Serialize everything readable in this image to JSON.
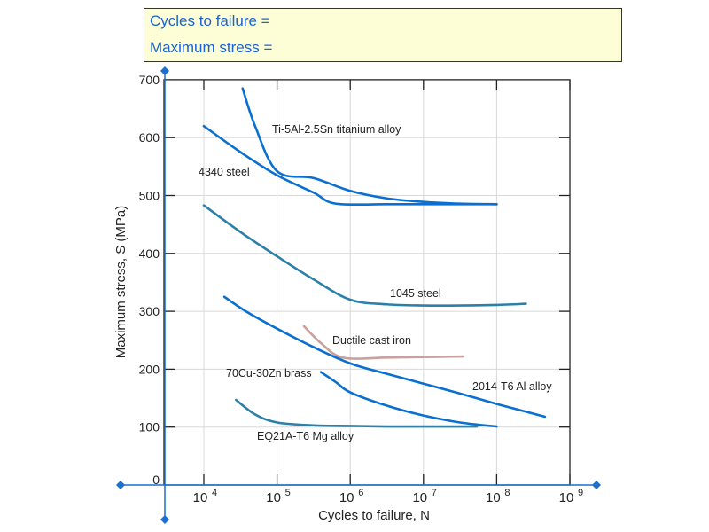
{
  "info_box": {
    "cycles_label": "Cycles to failure =",
    "stress_label": "Maximum stress ="
  },
  "chart_data": {
    "type": "line",
    "xlabel": "Cycles to failure, N",
    "ylabel": "Maximum stress, S (MPa)",
    "x_scale": "log",
    "xlim": [
      3.45,
      9
    ],
    "ylim": [
      0,
      700
    ],
    "x_ticks": [
      "10^4",
      "10^5",
      "10^6",
      "10^7",
      "10^8",
      "10^9"
    ],
    "y_ticks": [
      "0",
      "100",
      "200",
      "300",
      "400",
      "500",
      "600",
      "700"
    ],
    "grid": true,
    "series": [
      {
        "name": "Ti-5Al-2.5Sn titanium alloy",
        "color": "#0a6fd0",
        "x": [
          4.53,
          4.7,
          5.0,
          5.5,
          6.0,
          6.5,
          7.0,
          7.5,
          8.0
        ],
        "y": [
          685,
          620,
          542,
          530,
          508,
          495,
          489,
          486,
          485
        ]
      },
      {
        "name": "4340 steel",
        "color": "#0a6fd0",
        "x": [
          4.0,
          4.5,
          5.0,
          5.5,
          5.8,
          6.5,
          7.0,
          8.0
        ],
        "y": [
          620,
          575,
          535,
          505,
          486,
          485,
          485,
          485
        ]
      },
      {
        "name": "1045 steel",
        "color": "#2a80a8",
        "x": [
          4.0,
          4.5,
          5.0,
          5.5,
          6.0,
          6.5,
          7.0,
          7.5,
          8.0,
          8.4
        ],
        "y": [
          483,
          437,
          395,
          355,
          320,
          312,
          310,
          310,
          311,
          313
        ]
      },
      {
        "name": "Ductile cast iron",
        "color": "#c9a09c",
        "x": [
          5.37,
          5.6,
          5.9,
          6.5,
          7.0,
          7.54
        ],
        "y": [
          274,
          245,
          220,
          220,
          221,
          222
        ]
      },
      {
        "name": "2014-T6 Al alloy",
        "color": "#0a6fd0",
        "x": [
          4.28,
          4.6,
          5.0,
          5.5,
          6.0,
          6.5,
          7.0,
          7.5,
          8.0,
          8.66
        ],
        "y": [
          325,
          298,
          270,
          238,
          210,
          192,
          175,
          158,
          140,
          118
        ]
      },
      {
        "name": "70Cu-30Zn brass",
        "color": "#0a6fd0",
        "x": [
          5.6,
          5.8,
          6.0,
          6.5,
          7.0,
          7.5,
          8.0
        ],
        "y": [
          195,
          178,
          160,
          137,
          120,
          108,
          101
        ]
      },
      {
        "name": "EQ21A-T6 Mg alloy",
        "color": "#2a80a8",
        "x": [
          4.44,
          4.7,
          5.0,
          5.5,
          6.0,
          6.5,
          7.0,
          7.73
        ],
        "y": [
          147,
          122,
          108,
          103,
          102,
          101,
          101,
          101
        ]
      }
    ]
  }
}
